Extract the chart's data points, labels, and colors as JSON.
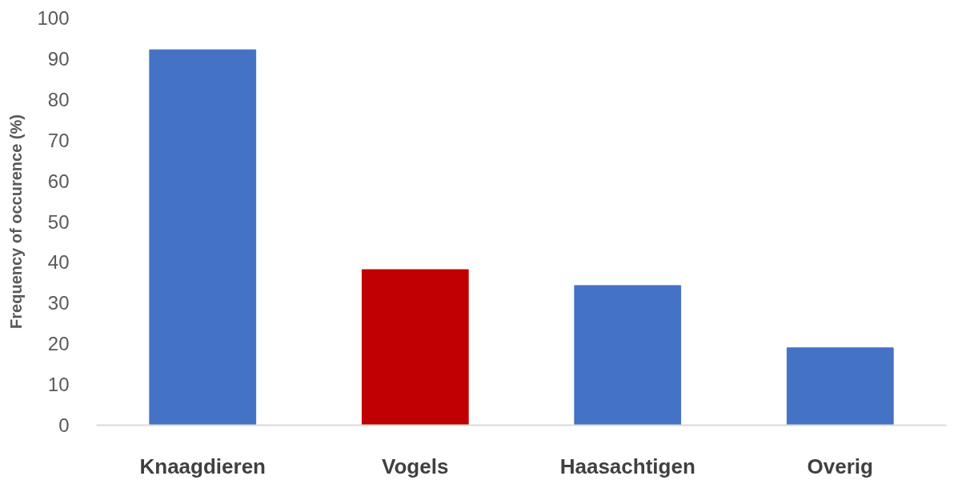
{
  "chart_data": {
    "type": "bar",
    "ylabel": "Frequency of occurence (%)",
    "categories": [
      "Knaagdieren",
      "Vogels",
      "Haasachtigen",
      "Overig"
    ],
    "values": [
      92.2,
      38.2,
      34.3,
      19.0
    ],
    "colors": [
      "#4472c4",
      "#c00000",
      "#4472c4",
      "#4472c4"
    ],
    "ylim": [
      0,
      100
    ],
    "yticks": [
      0,
      10,
      20,
      30,
      40,
      50,
      60,
      70,
      80,
      90,
      100
    ],
    "grid": false
  }
}
